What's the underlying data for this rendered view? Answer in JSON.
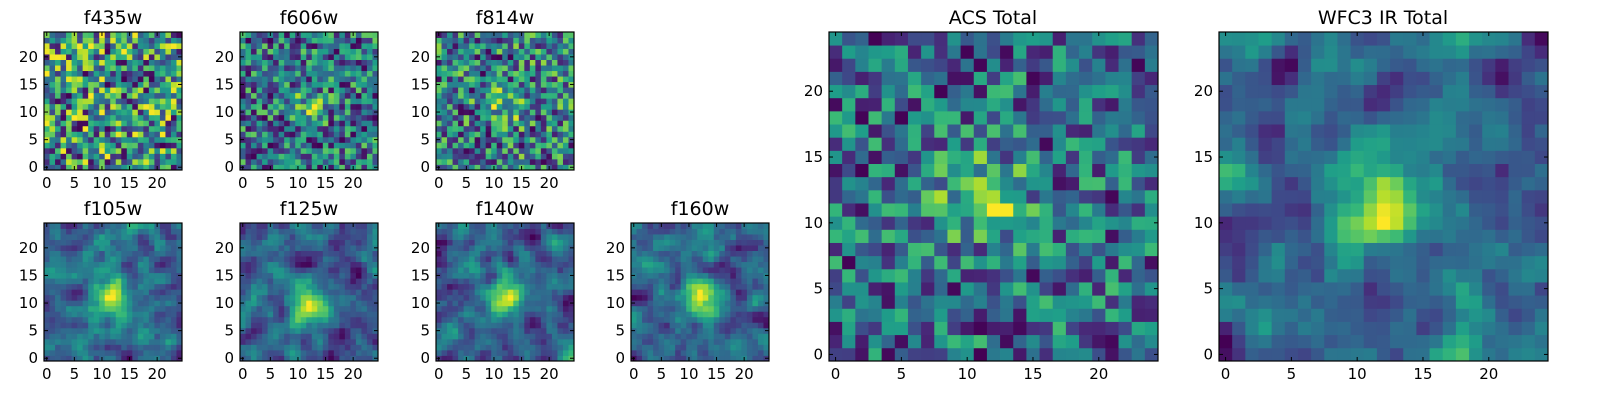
{
  "colormap": "viridis",
  "chart_data": [
    {
      "type": "heatmap",
      "title": "f435w",
      "xticks": [
        0,
        5,
        10,
        15,
        20
      ],
      "yticks": [
        0,
        5,
        10,
        15,
        20
      ],
      "xlim": [
        -0.5,
        24.5
      ],
      "ylim": [
        -0.5,
        24.5
      ],
      "grid_size": 25,
      "source_feature": "none",
      "seed": 11
    },
    {
      "type": "heatmap",
      "title": "f606w",
      "xticks": [
        0,
        5,
        10,
        15,
        20
      ],
      "yticks": [
        0,
        5,
        10,
        15,
        20
      ],
      "xlim": [
        -0.5,
        24.5
      ],
      "ylim": [
        -0.5,
        24.5
      ],
      "grid_size": 25,
      "source_feature": "faint central blob",
      "seed": 22
    },
    {
      "type": "heatmap",
      "title": "f814w",
      "xticks": [
        0,
        5,
        10,
        15,
        20
      ],
      "yticks": [
        0,
        5,
        10,
        15,
        20
      ],
      "xlim": [
        -0.5,
        24.5
      ],
      "ylim": [
        -0.5,
        24.5
      ],
      "grid_size": 25,
      "source_feature": "faint central blob",
      "seed": 33
    },
    {
      "type": "heatmap",
      "title": "f105w",
      "xticks": [
        0,
        5,
        10,
        15,
        20
      ],
      "yticks": [
        0,
        5,
        10,
        15,
        20
      ],
      "xlim": [
        -0.5,
        24.5
      ],
      "ylim": [
        -0.5,
        24.5
      ],
      "grid_size": 25,
      "source_feature": "central blob",
      "seed": 44
    },
    {
      "type": "heatmap",
      "title": "f125w",
      "xticks": [
        0,
        5,
        10,
        15,
        20
      ],
      "yticks": [
        0,
        5,
        10,
        15,
        20
      ],
      "xlim": [
        -0.5,
        24.5
      ],
      "ylim": [
        -0.5,
        24.5
      ],
      "grid_size": 25,
      "source_feature": "central blob",
      "seed": 55
    },
    {
      "type": "heatmap",
      "title": "f140w",
      "xticks": [
        0,
        5,
        10,
        15,
        20
      ],
      "yticks": [
        0,
        5,
        10,
        15,
        20
      ],
      "xlim": [
        -0.5,
        24.5
      ],
      "ylim": [
        -0.5,
        24.5
      ],
      "grid_size": 25,
      "source_feature": "central blob",
      "seed": 66
    },
    {
      "type": "heatmap",
      "title": "f160w",
      "xticks": [
        0,
        5,
        10,
        15,
        20
      ],
      "yticks": [
        0,
        5,
        10,
        15,
        20
      ],
      "xlim": [
        -0.5,
        24.5
      ],
      "ylim": [
        -0.5,
        24.5
      ],
      "grid_size": 25,
      "source_feature": "central blob",
      "seed": 77
    },
    {
      "type": "heatmap",
      "title": "ACS Total",
      "xticks": [
        0,
        5,
        10,
        15,
        20
      ],
      "yticks": [
        0,
        5,
        10,
        15,
        20
      ],
      "xlim": [
        -0.5,
        24.5
      ],
      "ylim": [
        -0.5,
        24.5
      ],
      "grid_size": 25,
      "source_feature": "bright blob near (11, 12)",
      "seed": 88
    },
    {
      "type": "heatmap",
      "title": "WFC3 IR Total",
      "xticks": [
        0,
        5,
        10,
        15,
        20
      ],
      "yticks": [
        0,
        5,
        10,
        15,
        20
      ],
      "xlim": [
        -0.5,
        24.5
      ],
      "ylim": [
        -0.5,
        24.5
      ],
      "grid_size": 25,
      "source_feature": "bright blob near (12, 11)",
      "seed": 99
    }
  ]
}
